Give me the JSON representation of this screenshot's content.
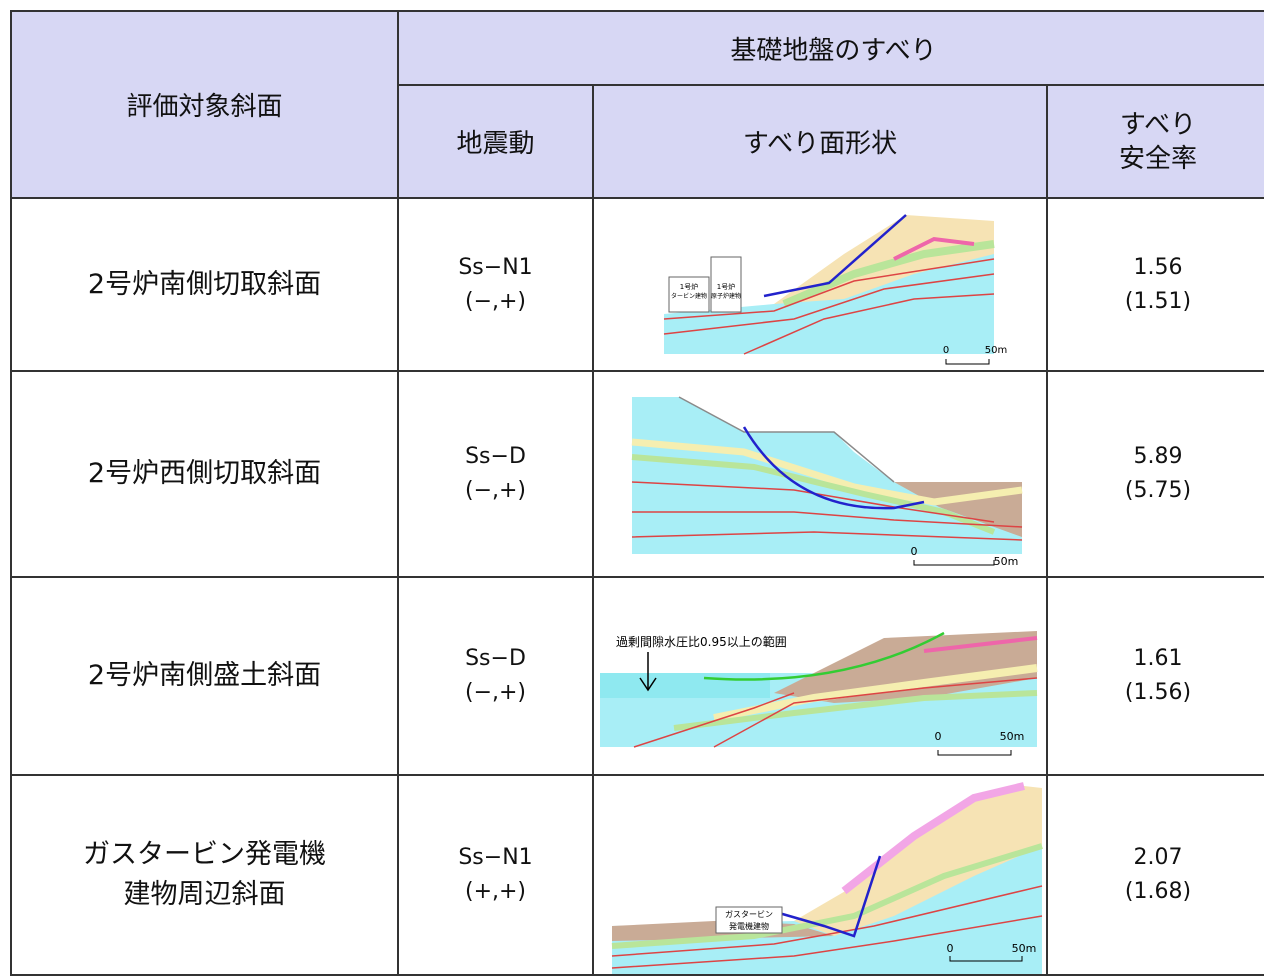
{
  "header": {
    "slope": "評価対象斜面",
    "group": "基礎地盤のすべり",
    "motion": "地震動",
    "shape": "すべり面形状",
    "factor": [
      "すべり",
      "安全率"
    ]
  },
  "rows": [
    {
      "slope": [
        "2号炉南側切取斜面"
      ],
      "motion": "Ss−N1",
      "sign": "(−,+)",
      "figure": {
        "labels": [
          "1号炉",
          "タービン建物",
          "1号炉",
          "原子炉建物"
        ],
        "scale": [
          "0",
          "50m"
        ]
      },
      "factor": "1.56",
      "factor_alt": "(1.51)"
    },
    {
      "slope": [
        "2号炉西側切取斜面"
      ],
      "motion": "Ss−D",
      "sign": "(−,+)",
      "figure": {
        "labels": [],
        "scale": [
          "0",
          "50m"
        ]
      },
      "factor": "5.89",
      "factor_alt": "(5.75)"
    },
    {
      "slope": [
        "2号炉南側盛土斜面"
      ],
      "motion": "Ss−D",
      "sign": "(−,+)",
      "figure": {
        "labels": [
          "過剰間隙水圧比0.95以上の範囲"
        ],
        "scale": [
          "0",
          "50m"
        ]
      },
      "factor": "1.61",
      "factor_alt": "(1.56)"
    },
    {
      "slope": [
        "ガスタービン発電機",
        "建物周辺斜面"
      ],
      "motion": "Ss−N1",
      "sign": "(+,+)",
      "figure": {
        "labels": [
          "ガスタービン",
          "発電機建物"
        ],
        "scale": [
          "0",
          "50m"
        ]
      },
      "factor": "2.07",
      "factor_alt": "(1.68)"
    }
  ]
}
